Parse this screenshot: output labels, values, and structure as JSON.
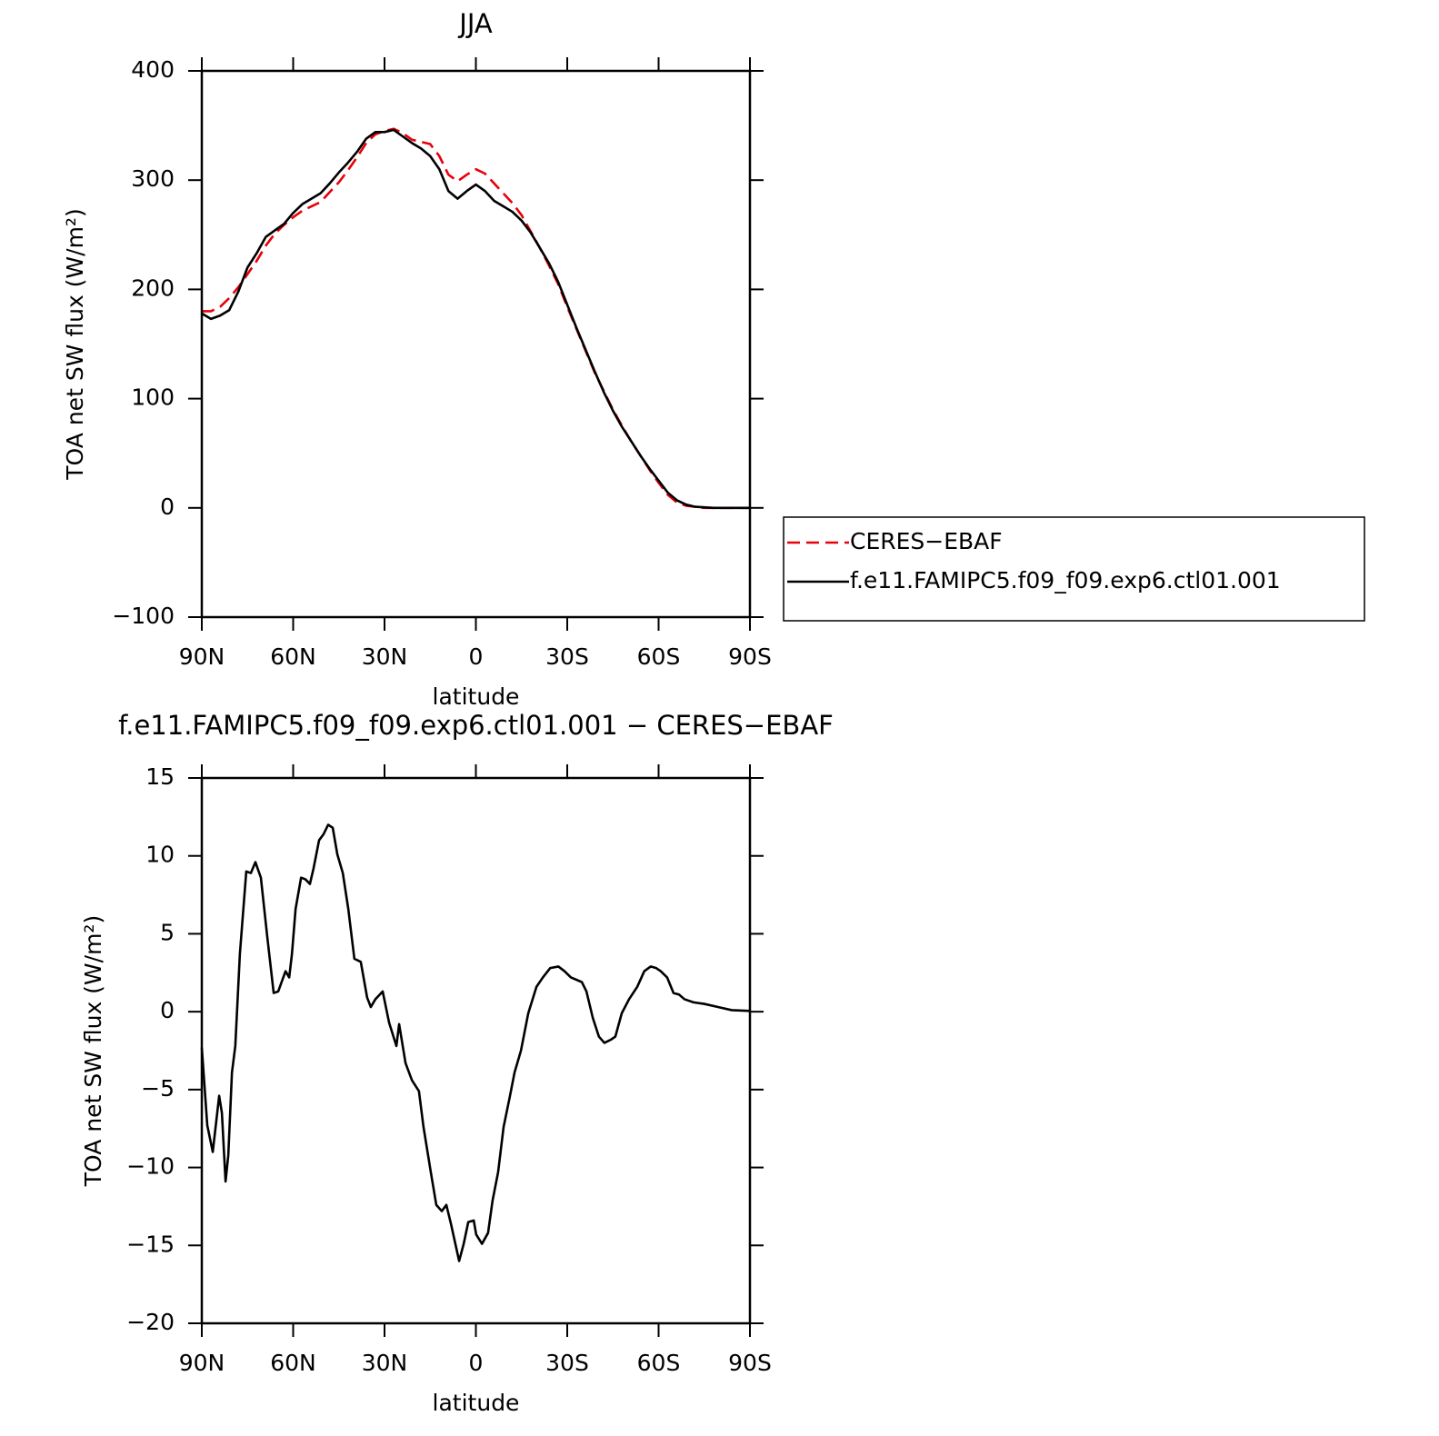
{
  "chart_data": [
    {
      "type": "line",
      "title": "JJA",
      "xlabel": "latitude",
      "ylabel": "TOA net SW flux (W/m²)",
      "x": [
        90,
        87,
        84,
        81,
        78,
        75,
        72,
        69,
        66,
        63,
        60,
        57,
        54,
        51,
        48,
        45,
        42,
        39,
        36,
        33,
        30,
        27,
        24,
        21,
        18,
        15,
        12,
        9,
        6,
        3,
        0,
        -3,
        -6,
        -9,
        -12,
        -15,
        -18,
        -21,
        -24,
        -27,
        -30,
        -33,
        -36,
        -39,
        -42,
        -45,
        -48,
        -51,
        -54,
        -57,
        -60,
        -63,
        -66,
        -69,
        -72,
        -75,
        -78,
        -81,
        -84,
        -87,
        -90
      ],
      "series": [
        {
          "name": "CERES−EBAF",
          "color": "#e8000b",
          "line_style": "dashed",
          "values": [
            180,
            180,
            184,
            192,
            202,
            214,
            226,
            240,
            251,
            259,
            266,
            272,
            276,
            280,
            289,
            298,
            309,
            321,
            334,
            342,
            345,
            347,
            343,
            337,
            335,
            333,
            322,
            305,
            299,
            305,
            310,
            306,
            297,
            288,
            279,
            268,
            253,
            238,
            222,
            205,
            184,
            164,
            144,
            124,
            107,
            90,
            75,
            61,
            48,
            35,
            23,
            12,
            5,
            2,
            1,
            0,
            0,
            0,
            0,
            0,
            0
          ]
        },
        {
          "name": "f.e11.FAMIPC5.f09_f09.exp6.ctl01.001",
          "color": "#000000",
          "line_style": "solid",
          "values": [
            178,
            173,
            176,
            181,
            198,
            220,
            233,
            248,
            254,
            260,
            270,
            278,
            283,
            288,
            297,
            307,
            316,
            326,
            338,
            344,
            344,
            346,
            340,
            334,
            329,
            322,
            310,
            290,
            283,
            290,
            296,
            290,
            281,
            276,
            271,
            263,
            252,
            238,
            224,
            207,
            186,
            165,
            145,
            125,
            106,
            89,
            74,
            61,
            48,
            36,
            25,
            14,
            7,
            3,
            1,
            0.5,
            0,
            0,
            0,
            0,
            0
          ]
        }
      ],
      "xlim": [
        90,
        -90
      ],
      "xticks": [
        {
          "value": 90,
          "label": "90N"
        },
        {
          "value": 60,
          "label": "60N"
        },
        {
          "value": 30,
          "label": "30N"
        },
        0,
        {
          "value": -30,
          "label": "30S"
        },
        {
          "value": -60,
          "label": "60S"
        },
        {
          "value": -90,
          "label": "90S"
        }
      ],
      "ylim": [
        -100,
        400
      ],
      "yticks": [
        {
          "value": -100,
          "label": "−100"
        },
        0,
        100,
        200,
        300,
        400
      ],
      "legend_position": "right"
    },
    {
      "type": "line",
      "title": "f.e11.FAMIPC5.f09_f09.exp6.ctl01.001 − CERES−EBAF",
      "xlabel": "latitude",
      "ylabel": "TOA net SW flux (W/m²)",
      "x": [
        90,
        88.2,
        86.4,
        84.3,
        83.4,
        82.2,
        81.3,
        80.1,
        79,
        77.5,
        75.4,
        73.9,
        72.4,
        70.6,
        68.5,
        66.4,
        64.9,
        62.5,
        61.3,
        60.4,
        59.2,
        57.4,
        56,
        54.5,
        53.3,
        51.5,
        50,
        48.5,
        47,
        45.5,
        43.7,
        41.9,
        39.9,
        37.8,
        35.7,
        34.5,
        33,
        30.6,
        28.5,
        26.1,
        25.2,
        23.1,
        21,
        18.7,
        17.2,
        14.8,
        13,
        11.2,
        9.7,
        8.2,
        5.5,
        4,
        2.5,
        0.7,
        -0.1,
        -2,
        -4,
        -5.5,
        -7.3,
        -9.1,
        -11.2,
        -12.7,
        -14.8,
        -17.2,
        -19.9,
        -22,
        -24.4,
        -27.1,
        -29.1,
        -31.2,
        -34.8,
        -36.3,
        -38.4,
        -40.4,
        -42.2,
        -44.3,
        -45.8,
        -47.9,
        -50.3,
        -53,
        -55.3,
        -57.4,
        -59.2,
        -60.7,
        -62.8,
        -64.9,
        -66.7,
        -68.5,
        -71.5,
        -75,
        -79.5,
        -84,
        -90
      ],
      "series": [
        {
          "name": "f.e11.FAMIPC5.f09_f09.exp6.ctl01.001 − CERES−EBAF",
          "color": "#000000",
          "line_style": "solid",
          "values": [
            -2.3,
            -7.3,
            -9.0,
            -5.4,
            -6.5,
            -10.9,
            -9.2,
            -3.9,
            -2.2,
            3.7,
            9.0,
            8.9,
            9.6,
            8.6,
            4.8,
            1.2,
            1.3,
            2.6,
            2.2,
            3.7,
            6.6,
            8.6,
            8.5,
            8.2,
            9.2,
            11.0,
            11.4,
            12.0,
            11.8,
            10.1,
            8.9,
            6.6,
            3.4,
            3.2,
            0.9,
            0.3,
            0.8,
            1.3,
            -0.7,
            -2.2,
            -0.8,
            -3.3,
            -4.4,
            -5.1,
            -7.4,
            -10.3,
            -12.4,
            -12.8,
            -12.4,
            -13.6,
            -16.0,
            -14.9,
            -13.5,
            -13.4,
            -14.3,
            -14.9,
            -14.2,
            -12.1,
            -10.3,
            -7.4,
            -5.4,
            -3.9,
            -2.5,
            -0.1,
            1.6,
            2.2,
            2.8,
            2.9,
            2.6,
            2.2,
            1.9,
            1.3,
            -0.4,
            -1.6,
            -2.0,
            -1.8,
            -1.6,
            -0.1,
            0.8,
            1.6,
            2.6,
            2.9,
            2.8,
            2.6,
            2.2,
            1.2,
            1.1,
            0.8,
            0.6,
            0.5,
            0.3,
            0.1,
            0.05
          ]
        }
      ],
      "xlim": [
        90,
        -90
      ],
      "xticks": [
        {
          "value": 90,
          "label": "90N"
        },
        {
          "value": 60,
          "label": "60N"
        },
        {
          "value": 30,
          "label": "30N"
        },
        0,
        {
          "value": -30,
          "label": "30S"
        },
        {
          "value": -60,
          "label": "60S"
        },
        {
          "value": -90,
          "label": "90S"
        }
      ],
      "ylim": [
        -20,
        15
      ],
      "yticks": [
        {
          "value": -20,
          "label": "−20"
        },
        {
          "value": -15,
          "label": "−15"
        },
        {
          "value": -10,
          "label": "−10"
        },
        {
          "value": -5,
          "label": "−5"
        },
        0,
        5,
        10,
        15
      ]
    }
  ]
}
